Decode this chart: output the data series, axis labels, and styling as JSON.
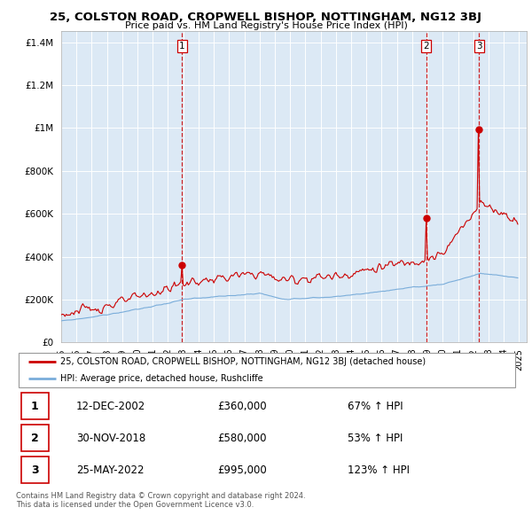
{
  "title": "25, COLSTON ROAD, CROPWELL BISHOP, NOTTINGHAM, NG12 3BJ",
  "subtitle": "Price paid vs. HM Land Registry's House Price Index (HPI)",
  "footer_line1": "Contains HM Land Registry data © Crown copyright and database right 2024.",
  "footer_line2": "This data is licensed under the Open Government Licence v3.0.",
  "legend_red": "25, COLSTON ROAD, CROPWELL BISHOP, NOTTINGHAM, NG12 3BJ (detached house)",
  "legend_blue": "HPI: Average price, detached house, Rushcliffe",
  "transactions": [
    {
      "num": 1,
      "date": "12-DEC-2002",
      "price": 360000,
      "pct": "67%",
      "dir": "↑"
    },
    {
      "num": 2,
      "date": "30-NOV-2018",
      "price": 580000,
      "pct": "53%",
      "dir": "↑"
    },
    {
      "num": 3,
      "date": "25-MAY-2022",
      "price": 995000,
      "pct": "123%",
      "dir": "↑"
    }
  ],
  "red_color": "#cc0000",
  "blue_color": "#7aadda",
  "dashed_color": "#cc0000",
  "chart_bg": "#dce9f5",
  "ylim": [
    0,
    1450000
  ],
  "yticks": [
    0,
    200000,
    400000,
    600000,
    800000,
    1000000,
    1200000,
    1400000
  ],
  "transaction_points": [
    {
      "year": 2002.917,
      "price": 360000
    },
    {
      "year": 2018.917,
      "price": 580000
    },
    {
      "year": 2022.375,
      "price": 995000
    }
  ],
  "vline_years": [
    2002.917,
    2018.917,
    2022.375
  ],
  "vline_labels": [
    "1",
    "2",
    "3"
  ],
  "xtick_years": [
    1995,
    1996,
    1997,
    1998,
    1999,
    2000,
    2001,
    2002,
    2003,
    2004,
    2005,
    2006,
    2007,
    2008,
    2009,
    2010,
    2011,
    2012,
    2013,
    2014,
    2015,
    2016,
    2017,
    2018,
    2019,
    2020,
    2021,
    2022,
    2023,
    2024,
    2025
  ]
}
